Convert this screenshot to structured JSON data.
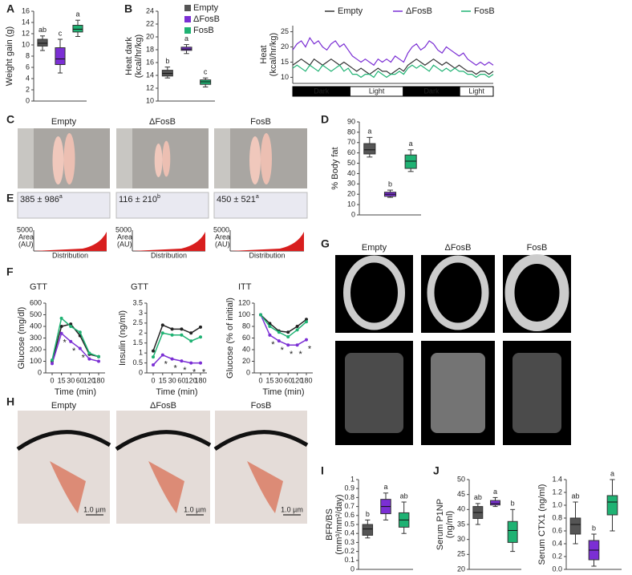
{
  "figure": {
    "C": {
      "panel": "C",
      "labels": [
        "Empty",
        "ΔFosB",
        "FosB"
      ]
    },
    "E": {
      "panel": "E",
      "stats": [
        {
          "text": "385 ± 986",
          "sup": "a"
        },
        {
          "text": "116 ± 210",
          "sup": "b"
        },
        {
          "text": "450 ± 521",
          "sup": "a"
        }
      ],
      "area_label": [
        "Area",
        "(AU)"
      ],
      "area_max": 5000,
      "xlabel": "Distribution"
    },
    "G": {
      "panel": "G",
      "labels": [
        "Empty",
        "ΔFosB",
        "FosB"
      ]
    },
    "H": {
      "panel": "H",
      "labels": [
        "Empty",
        "ΔFosB",
        "FosB"
      ],
      "scale": "1.0 µm"
    }
  },
  "chart_data": [
    {
      "panel": "A",
      "type": "box",
      "ylabel": [
        "Weight gain (g)"
      ],
      "ylim": [
        0,
        16
      ],
      "yticks": [
        0,
        2,
        4,
        6,
        8,
        10,
        12,
        14,
        16
      ],
      "boxes": [
        {
          "color": "#555555",
          "min": 9,
          "q1": 9.8,
          "median": 10.3,
          "q3": 11,
          "max": 11.6,
          "letter": "ab"
        },
        {
          "color": "#7b2fd4",
          "min": 5,
          "q1": 6.5,
          "median": 7.5,
          "q3": 9.5,
          "max": 11,
          "letter": "c"
        },
        {
          "color": "#1fb273",
          "min": 11.5,
          "q1": 12.3,
          "median": 12.8,
          "q3": 13.5,
          "max": 14.4,
          "letter": "a"
        }
      ]
    },
    {
      "panel": "B",
      "type": "box",
      "ylabel": [
        "Heat dark",
        "(kcal/hr/kg)"
      ],
      "ylim": [
        10,
        24
      ],
      "yticks": [
        10,
        12,
        14,
        16,
        18,
        20,
        22,
        24
      ],
      "legend": "upper right",
      "boxes": [
        {
          "name": "Empty",
          "color": "#555555",
          "min": 13.6,
          "q1": 13.9,
          "median": 14.3,
          "q3": 14.8,
          "max": 15.3,
          "letter": "b"
        },
        {
          "name": "ΔFosB",
          "color": "#7b2fd4",
          "min": 17.4,
          "q1": 17.9,
          "median": 18.1,
          "q3": 18.4,
          "max": 18.8,
          "letter": "a"
        },
        {
          "name": "FosB",
          "color": "#1fb273",
          "min": 12.2,
          "q1": 12.6,
          "median": 13,
          "q3": 13.3,
          "max": 13.6,
          "letter": "c"
        }
      ]
    },
    {
      "type": "line",
      "ylabel": [
        "Heat",
        "(kcal/hr/kg)"
      ],
      "ylim": [
        8,
        27
      ],
      "yticks": [
        10,
        15,
        20,
        25
      ],
      "legend": "top",
      "markers": false,
      "periods": [
        "Dark",
        "Light",
        "Dark",
        "Light"
      ],
      "series": [
        {
          "name": "Empty",
          "color": "#333333",
          "values": [
            14,
            15,
            16,
            15,
            14,
            16,
            15,
            14,
            15,
            16,
            15,
            14,
            15,
            14,
            13,
            12,
            13,
            12,
            11,
            12,
            13,
            12,
            12,
            11,
            12,
            13,
            12,
            14,
            15,
            16,
            15,
            14,
            15,
            16,
            15,
            14,
            15,
            14,
            13,
            14,
            13,
            12,
            12,
            11,
            12,
            12,
            11,
            12
          ]
        },
        {
          "name": "ΔFosB",
          "color": "#7b2fd4",
          "values": [
            19,
            21,
            22,
            20,
            23,
            21,
            22,
            20,
            19,
            21,
            22,
            20,
            21,
            19,
            17,
            16,
            15,
            16,
            15,
            14,
            16,
            15,
            16,
            15,
            17,
            16,
            15,
            18,
            20,
            21,
            19,
            20,
            22,
            21,
            19,
            18,
            20,
            19,
            18,
            17,
            18,
            16,
            15,
            14,
            15,
            14,
            15,
            14
          ]
        },
        {
          "name": "FosB",
          "color": "#1fb273",
          "values": [
            13,
            14,
            13,
            12,
            14,
            13,
            12,
            14,
            13,
            12,
            13,
            14,
            12,
            13,
            11,
            11,
            10,
            11,
            11,
            10,
            12,
            11,
            10,
            11,
            11,
            12,
            11,
            13,
            14,
            13,
            14,
            13,
            12,
            14,
            13,
            12,
            13,
            12,
            13,
            12,
            12,
            11,
            11,
            10,
            11,
            11,
            10,
            11
          ]
        }
      ]
    },
    {
      "panel": "D",
      "type": "box",
      "ylabel": [
        "% Body fat"
      ],
      "ylim": [
        0,
        90
      ],
      "yticks": [
        0,
        10,
        20,
        30,
        40,
        50,
        60,
        70,
        80,
        90
      ],
      "boxes": [
        {
          "color": "#555555",
          "min": 56,
          "q1": 59,
          "median": 63,
          "q3": 69,
          "max": 75,
          "letter": "a"
        },
        {
          "color": "#7b2fd4",
          "min": 17,
          "q1": 18,
          "median": 20,
          "q3": 22,
          "max": 24,
          "letter": "b"
        },
        {
          "color": "#1fb273",
          "min": 42,
          "q1": 45,
          "median": 52,
          "q3": 58,
          "max": 63,
          "letter": "a"
        }
      ]
    },
    {
      "panel": "F",
      "type": "line",
      "title": "GTT",
      "ylabel": [
        "Glucose (mg/dl)"
      ],
      "xlabel": "Time (min)",
      "markers": true,
      "categories": [
        0,
        15,
        30,
        60,
        120,
        180
      ],
      "ylim": [
        0,
        600
      ],
      "yticks": [
        0,
        100,
        200,
        300,
        400,
        500,
        600
      ],
      "stars": [
        null,
        "*",
        "*",
        "*",
        null,
        null
      ],
      "series": [
        {
          "color": "#222222",
          "values": [
            100,
            400,
            420,
            320,
            160,
            140
          ]
        },
        {
          "color": "#7b2fd4",
          "values": [
            80,
            340,
            270,
            210,
            120,
            100
          ]
        },
        {
          "color": "#1fb273",
          "values": [
            110,
            470,
            400,
            350,
            170,
            140
          ]
        }
      ]
    },
    {
      "type": "line",
      "title": "GTT",
      "ylabel": [
        "Insulin (ng/ml)"
      ],
      "xlabel": "Time (min)",
      "markers": true,
      "categories": [
        0,
        15,
        30,
        60,
        120,
        180
      ],
      "ylim": [
        0,
        3.5
      ],
      "yticks": [
        0,
        0.5,
        1,
        1.5,
        2,
        2.5,
        3,
        3.5
      ],
      "stars": [
        null,
        "*",
        "*",
        "*",
        "*",
        "*"
      ],
      "series": [
        {
          "color": "#222222",
          "values": [
            1.1,
            2.4,
            2.2,
            2.2,
            2,
            2.3
          ]
        },
        {
          "color": "#7b2fd4",
          "values": [
            0.4,
            0.9,
            0.7,
            0.6,
            0.5,
            0.5
          ]
        },
        {
          "color": "#1fb273",
          "values": [
            0.8,
            2,
            1.9,
            1.9,
            1.6,
            1.8
          ]
        }
      ]
    },
    {
      "type": "line",
      "title": "ITT",
      "ylabel": [
        "Glucose (% of initial)"
      ],
      "xlabel": "Time (min)",
      "markers": true,
      "categories": [
        0,
        15,
        30,
        60,
        120,
        180
      ],
      "ylim": [
        0,
        120
      ],
      "yticks": [
        0,
        20,
        40,
        60,
        80,
        100,
        120
      ],
      "stars": [
        null,
        "*",
        "*",
        "*",
        "*",
        "*"
      ],
      "series": [
        {
          "color": "#222222",
          "values": [
            100,
            85,
            72,
            70,
            80,
            92
          ]
        },
        {
          "color": "#7b2fd4",
          "values": [
            100,
            65,
            55,
            48,
            48,
            57
          ]
        },
        {
          "color": "#1fb273",
          "values": [
            100,
            80,
            70,
            62,
            74,
            88
          ]
        }
      ]
    },
    {
      "panel": "I",
      "type": "box",
      "ylabel": [
        "BFR/BS",
        "(mm³/mm²/day)"
      ],
      "ylim": [
        0,
        1
      ],
      "yticks": [
        0,
        0.1,
        0.2,
        0.3,
        0.4,
        0.5,
        0.6,
        0.7,
        0.8,
        0.9,
        1
      ],
      "boxes": [
        {
          "color": "#555555",
          "min": 0.35,
          "q1": 0.38,
          "median": 0.45,
          "q3": 0.5,
          "max": 0.55,
          "letter": "b"
        },
        {
          "color": "#7b2fd4",
          "min": 0.55,
          "q1": 0.62,
          "median": 0.7,
          "q3": 0.78,
          "max": 0.85,
          "letter": "a"
        },
        {
          "color": "#1fb273",
          "min": 0.4,
          "q1": 0.47,
          "median": 0.55,
          "q3": 0.63,
          "max": 0.75,
          "letter": "ab"
        }
      ]
    },
    {
      "panel": "J",
      "type": "box",
      "ylabel": [
        "Serum P1NP",
        "(ng/ml)"
      ],
      "ylim": [
        20,
        50
      ],
      "yticks": [
        20,
        25,
        30,
        35,
        40,
        45,
        50
      ],
      "boxes": [
        {
          "color": "#555555",
          "min": 35,
          "q1": 37,
          "median": 39,
          "q3": 41,
          "max": 42,
          "letter": "ab"
        },
        {
          "color": "#7b2fd4",
          "min": 41,
          "q1": 41.5,
          "median": 42,
          "q3": 43,
          "max": 44,
          "letter": "a"
        },
        {
          "color": "#1fb273",
          "min": 26,
          "q1": 29,
          "median": 33,
          "q3": 36,
          "max": 40,
          "letter": "b"
        }
      ]
    },
    {
      "type": "box",
      "ylabel": [
        "Serum CTX1 (ng/ml)"
      ],
      "ylim": [
        0,
        1.4
      ],
      "yticks": [
        {
          "value": 0,
          "label": "0.0"
        },
        {
          "value": 0.2,
          "label": "0.2"
        },
        {
          "value": 0.4,
          "label": "0.4"
        },
        {
          "value": 0.6,
          "label": "0.6"
        },
        {
          "value": 0.8,
          "label": "0.8"
        },
        {
          "value": 1,
          "label": "1.0"
        },
        {
          "value": 1.2,
          "label": "1.2"
        },
        {
          "value": 1.4,
          "label": "1.4"
        }
      ],
      "boxes": [
        {
          "color": "#555555",
          "min": 0.4,
          "q1": 0.55,
          "median": 0.7,
          "q3": 0.8,
          "max": 1.05,
          "letter": "ab"
        },
        {
          "color": "#7b2fd4",
          "min": 0.05,
          "q1": 0.15,
          "median": 0.3,
          "q3": 0.45,
          "max": 0.55,
          "letter": "b"
        },
        {
          "color": "#1fb273",
          "min": 0.6,
          "q1": 0.85,
          "median": 1.05,
          "q3": 1.15,
          "max": 1.4,
          "letter": "a"
        }
      ]
    }
  ]
}
